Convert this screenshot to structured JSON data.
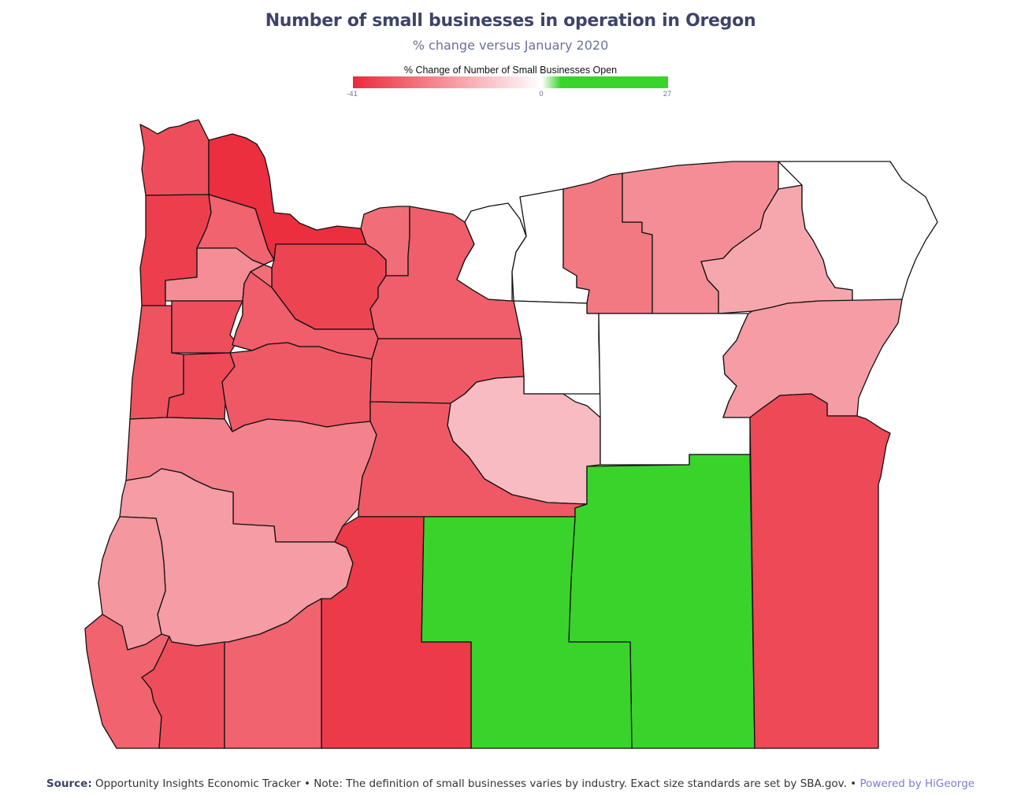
{
  "title": "Number of small businesses in operation in Oregon",
  "subtitle": "% change versus January 2020",
  "legend": {
    "title": "% Change of Number of Small Businesses Open",
    "min_label": "-41",
    "mid_label": "0",
    "max_label": "27",
    "min_color": "#ea2a3a",
    "mid_color": "#ffffff",
    "max_color": "#3ad32c"
  },
  "footer": {
    "source_label": "Source:",
    "source_text": "Opportunity Insights Economic Tracker • Note: The definition of small businesses varies by industry. Exact size standards are set by SBA.gov. •",
    "powered": "Powered by HiGeorge"
  },
  "chart_data": {
    "type": "choropleth",
    "region": "Oregon counties",
    "color_scale": {
      "min": -41,
      "mid": 0,
      "max": 27
    },
    "regions": [
      {
        "id": "clatsop",
        "value": -34
      },
      {
        "id": "columbia",
        "value": -40
      },
      {
        "id": "tillamook",
        "value": -37
      },
      {
        "id": "washington",
        "value": -30
      },
      {
        "id": "multnomah",
        "value": -36
      },
      {
        "id": "yamhill",
        "value": -22
      },
      {
        "id": "clackamas",
        "value": -28
      },
      {
        "id": "hood-river",
        "value": -28
      },
      {
        "id": "wasco",
        "value": -31
      },
      {
        "id": "sherman",
        "value": 0
      },
      {
        "id": "gilliam",
        "value": 0
      },
      {
        "id": "morrow",
        "value": -26
      },
      {
        "id": "umatilla",
        "value": -22
      },
      {
        "id": "union",
        "value": -17
      },
      {
        "id": "wallowa",
        "value": 0
      },
      {
        "id": "lincoln",
        "value": -33
      },
      {
        "id": "polk",
        "value": -34
      },
      {
        "id": "marion",
        "value": -31
      },
      {
        "id": "benton",
        "value": -35
      },
      {
        "id": "linn",
        "value": -32
      },
      {
        "id": "jefferson",
        "value": -32
      },
      {
        "id": "wheeler",
        "value": 0
      },
      {
        "id": "crook",
        "value": -13
      },
      {
        "id": "grant",
        "value": 0
      },
      {
        "id": "baker",
        "value": -19
      },
      {
        "id": "lane",
        "value": -24
      },
      {
        "id": "deschutes",
        "value": -32
      },
      {
        "id": "douglas",
        "value": -19
      },
      {
        "id": "coos",
        "value": -20
      },
      {
        "id": "harney",
        "value": 27
      },
      {
        "id": "malheur",
        "value": -35
      },
      {
        "id": "lake",
        "value": 27
      },
      {
        "id": "klamath",
        "value": -38
      },
      {
        "id": "curry",
        "value": -30
      },
      {
        "id": "josephine",
        "value": -34
      },
      {
        "id": "jackson",
        "value": -30
      }
    ]
  }
}
